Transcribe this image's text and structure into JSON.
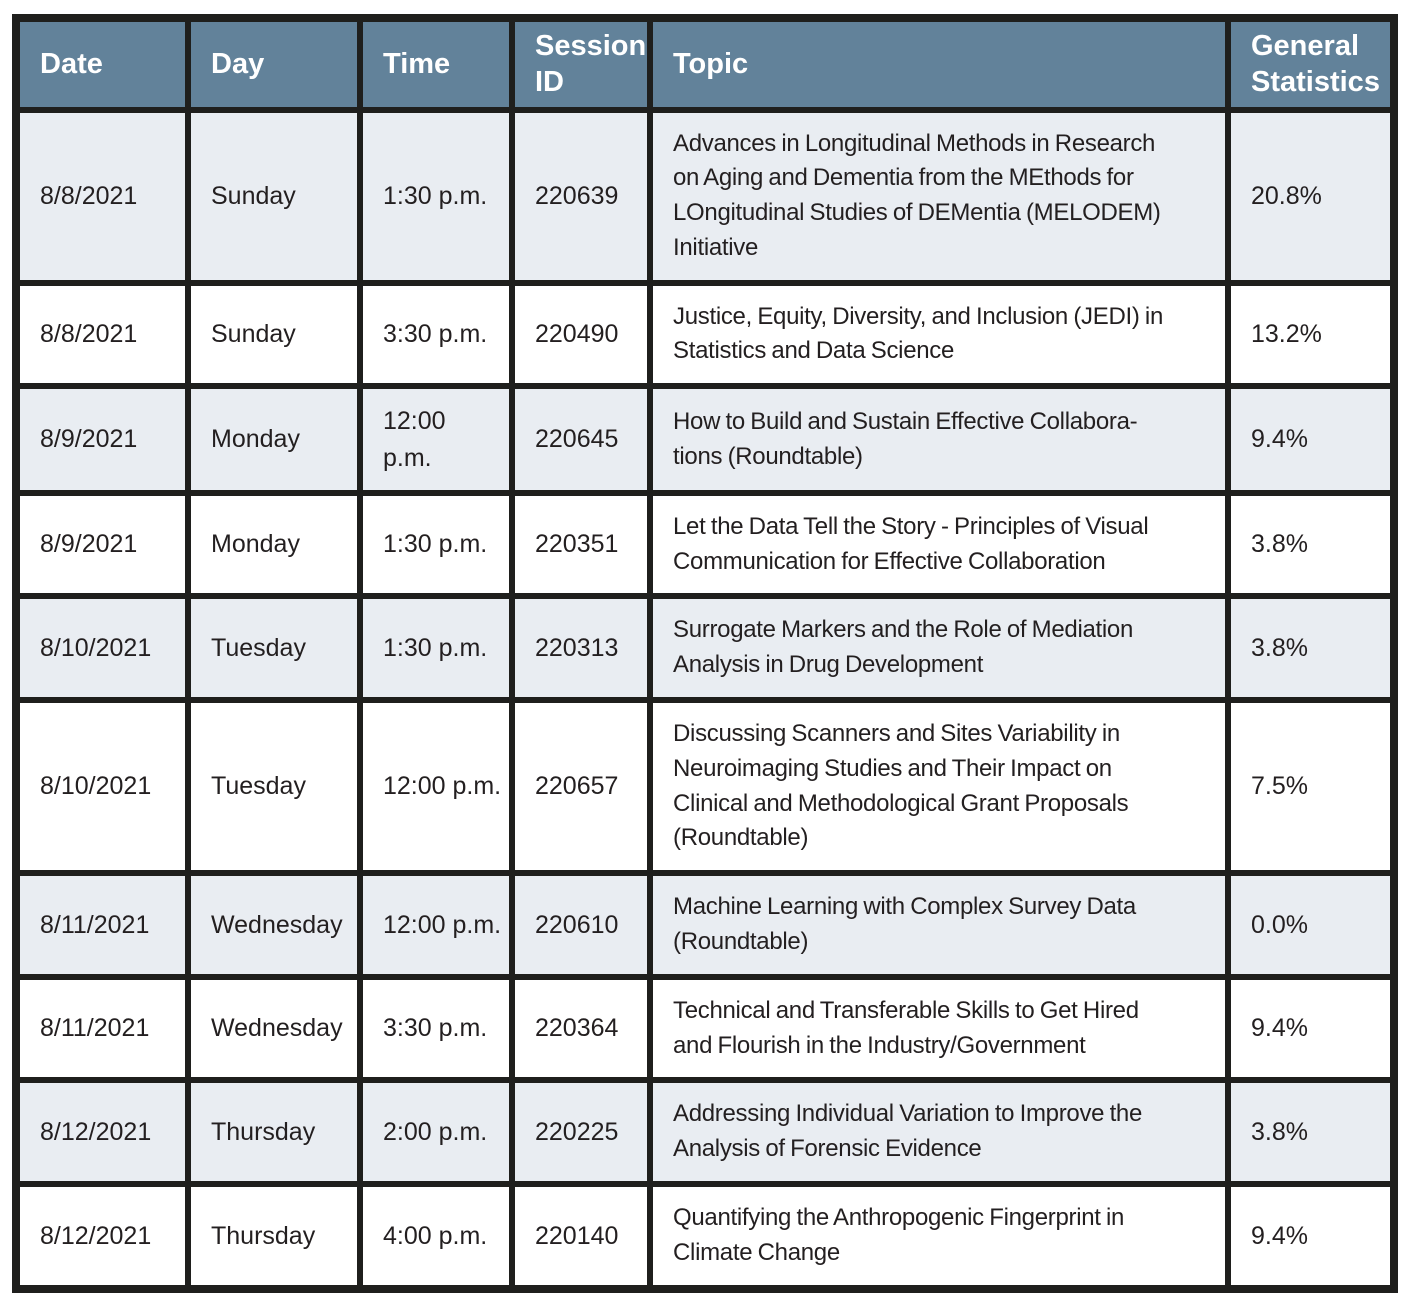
{
  "table": {
    "columns": [
      {
        "key": "date",
        "label": "Date"
      },
      {
        "key": "day",
        "label": "Day"
      },
      {
        "key": "time",
        "label": "Time"
      },
      {
        "key": "session_id",
        "label": "Session ID"
      },
      {
        "key": "topic",
        "label": "Topic"
      },
      {
        "key": "general_statistics",
        "label": "General Statistics"
      }
    ],
    "rows": [
      {
        "date": "8/8/2021",
        "day": "Sunday",
        "time": "1:30 p.m.",
        "session_id": "220639",
        "topic": "Advances in Longitudinal Methods in Research\non Aging and Dementia from the MEthods for\nLOngitudinal Studies of DEMentia (MELODEM)\nInitiative",
        "general_statistics": "20.8%"
      },
      {
        "date": "8/8/2021",
        "day": "Sunday",
        "time": "3:30 p.m.",
        "session_id": "220490",
        "topic": "Justice, Equity, Diversity, and Inclusion (JEDI) in\nStatistics and Data Science",
        "general_statistics": "13.2%"
      },
      {
        "date": "8/9/2021",
        "day": "Monday",
        "time": "12:00\np.m.",
        "session_id": "220645",
        "topic": "How to Build and Sustain Effective Collabora-\ntions (Roundtable)",
        "general_statistics": "9.4%"
      },
      {
        "date": "8/9/2021",
        "day": "Monday",
        "time": "1:30 p.m.",
        "session_id": "220351",
        "topic": "Let the Data Tell the Story - Principles of Visual\nCommunication for Effective Collaboration",
        "general_statistics": "3.8%"
      },
      {
        "date": "8/10/2021",
        "day": "Tuesday",
        "time": "1:30 p.m.",
        "session_id": "220313",
        "topic": "Surrogate Markers and the Role of Mediation\nAnalysis in Drug Development",
        "general_statistics": "3.8%"
      },
      {
        "date": "8/10/2021",
        "day": "Tuesday",
        "time": "12:00 p.m.",
        "session_id": "220657",
        "topic": "Discussing Scanners and Sites Variability in\nNeuroimaging Studies and Their Impact on\nClinical and Methodological Grant Proposals\n(Roundtable)",
        "general_statistics": "7.5%"
      },
      {
        "date": "8/11/2021",
        "day": "Wednesday",
        "time": "12:00 p.m.",
        "session_id": "220610",
        "topic": "Machine Learning with Complex Survey Data\n(Roundtable)",
        "general_statistics": "0.0%"
      },
      {
        "date": "8/11/2021",
        "day": "Wednesday",
        "time": "3:30 p.m.",
        "session_id": "220364",
        "topic": "Technical and Transferable Skills to Get Hired\nand Flourish in the Industry/Government",
        "general_statistics": "9.4%"
      },
      {
        "date": "8/12/2021",
        "day": "Thursday",
        "time": "2:00 p.m.",
        "session_id": "220225",
        "topic": "Addressing Individual Variation to Improve the\nAnalysis of Forensic Evidence",
        "general_statistics": "3.8%"
      },
      {
        "date": "8/12/2021",
        "day": "Thursday",
        "time": "4:00 p.m.",
        "session_id": "220140",
        "topic": "Quantifying the Anthropogenic Fingerprint in\nClimate Change",
        "general_statistics": "9.4%"
      }
    ]
  },
  "colors": {
    "header_bg": "#62829a",
    "header_text": "#ffffff",
    "row_alt_bg": "#e9edf2",
    "row_bg": "#ffffff",
    "border": "#1f1f1d",
    "body_text": "#231f20"
  }
}
